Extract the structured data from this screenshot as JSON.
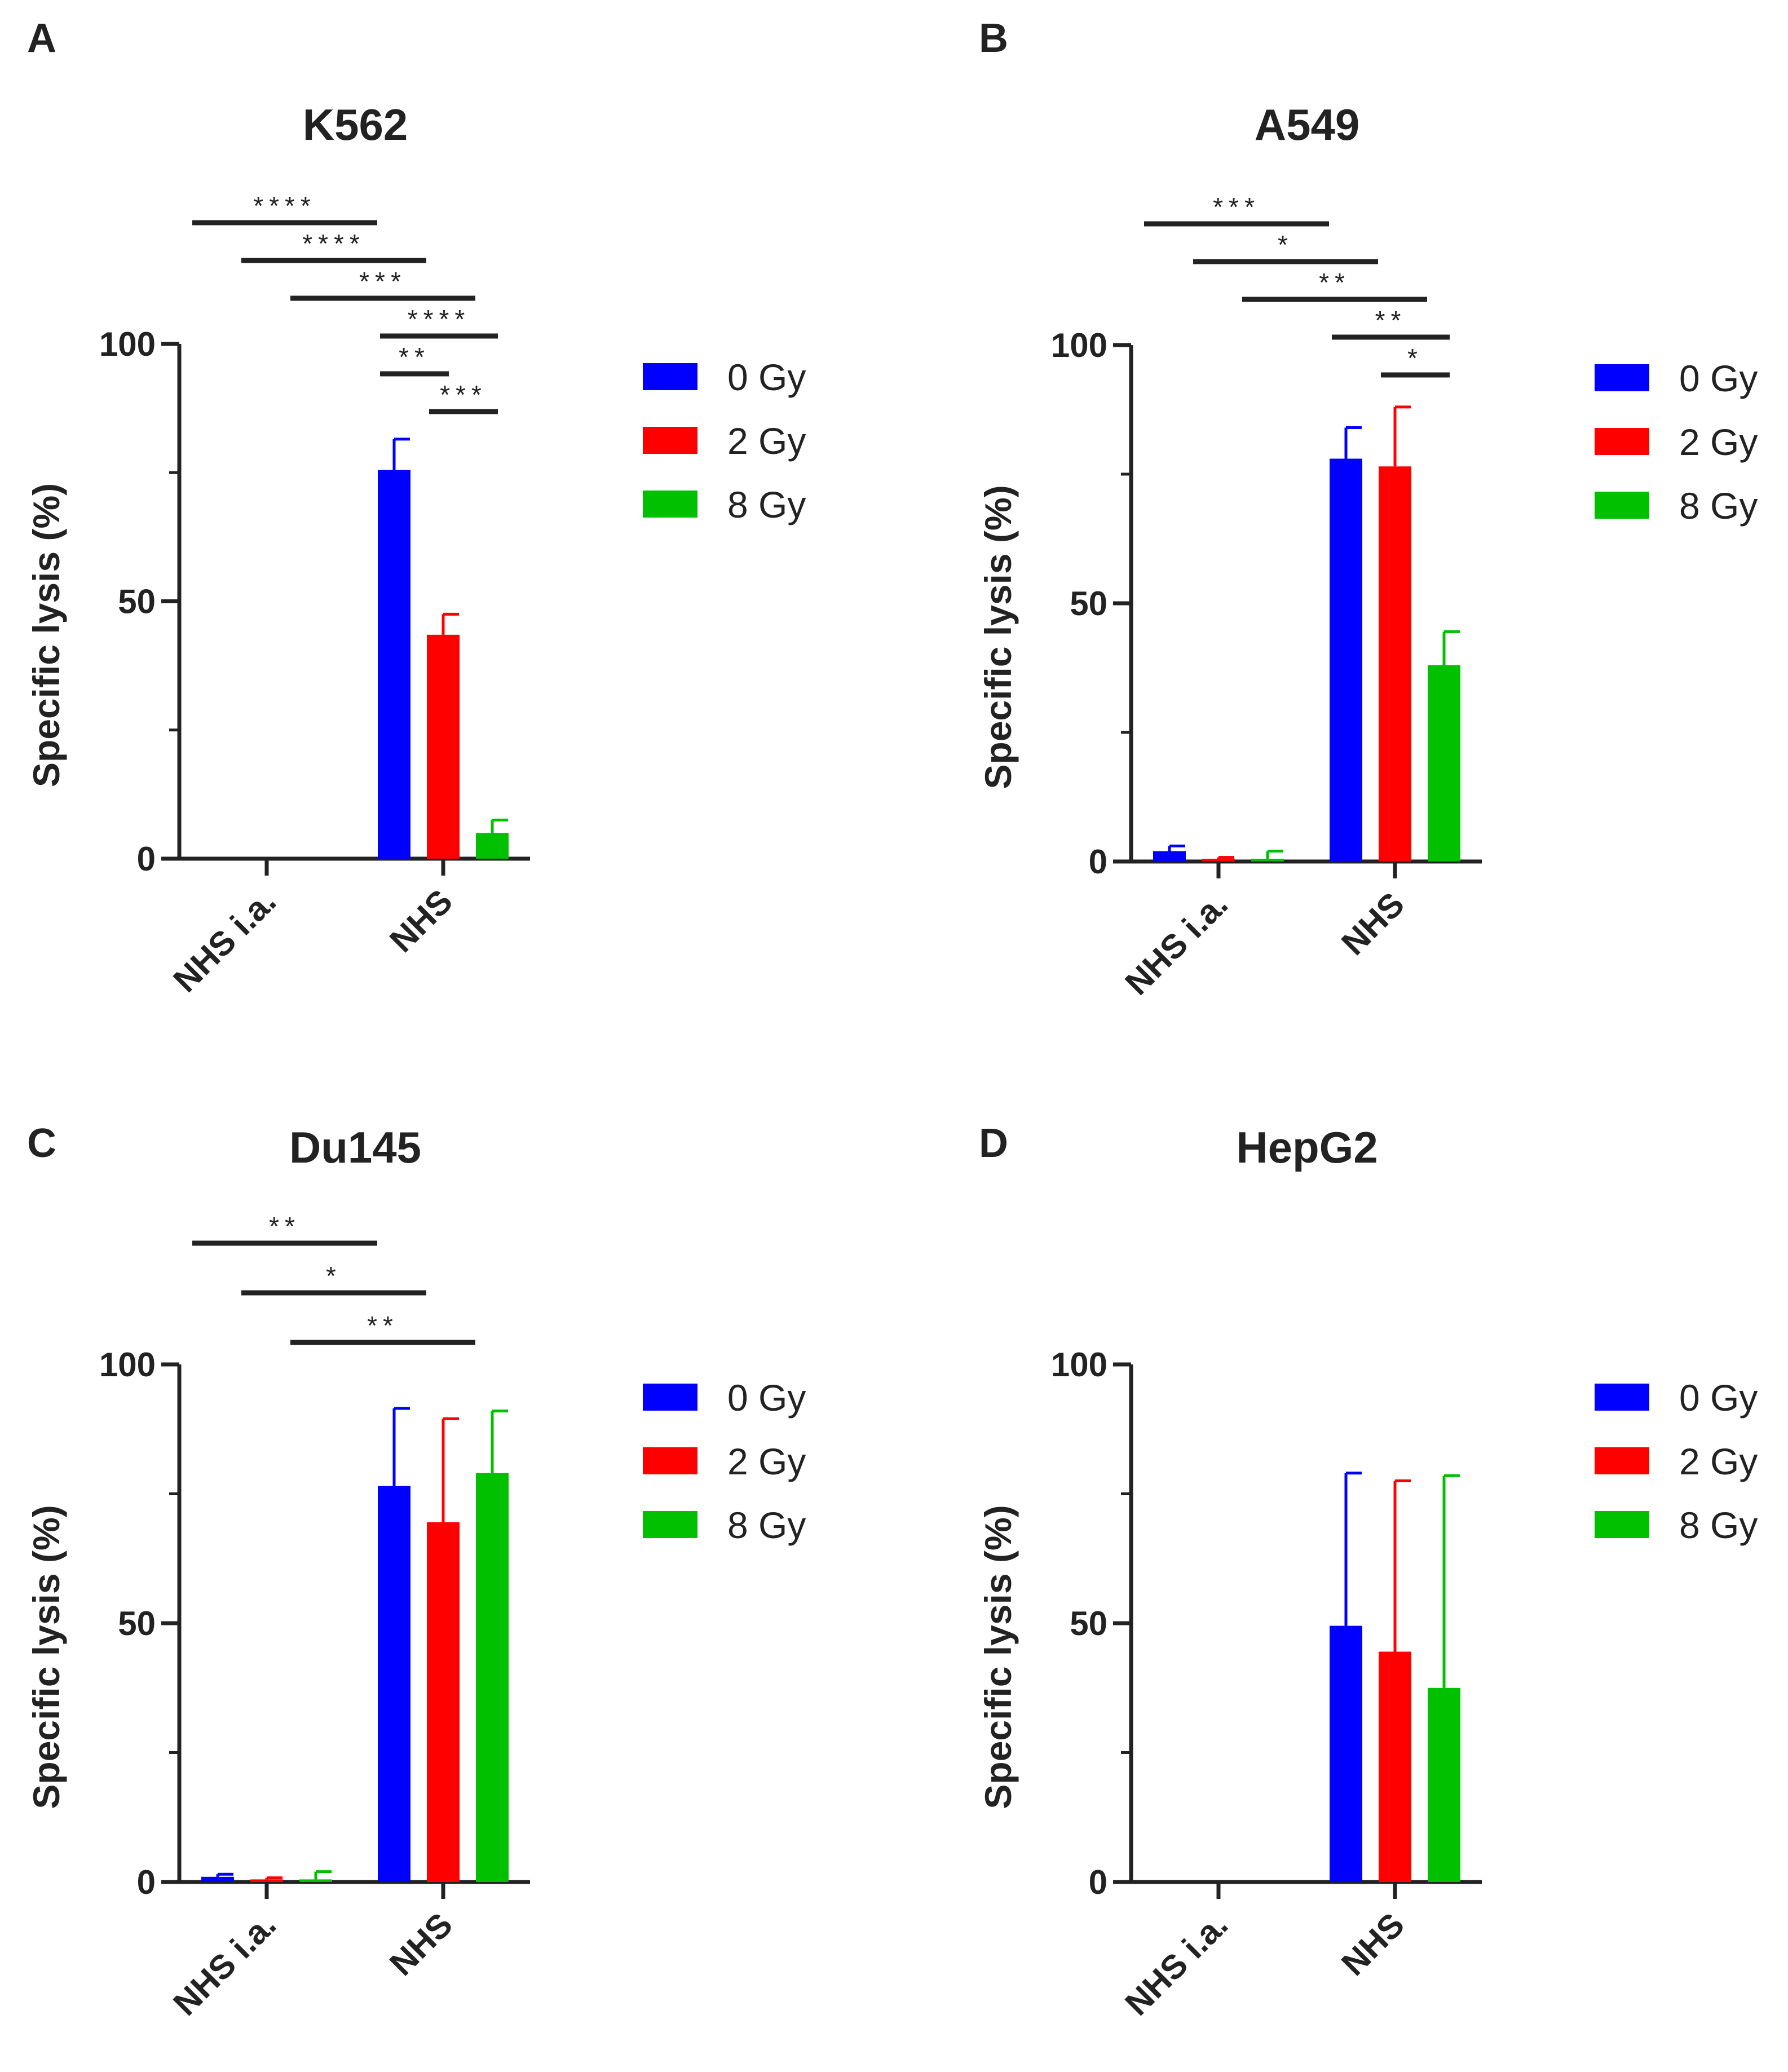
{
  "colors": {
    "0 Gy": "#0000ff",
    "2 Gy": "#ff0000",
    "8 Gy": "#00c000",
    "axis": "#222222"
  },
  "chart_data": [
    {
      "panel": "A",
      "type": "bar",
      "title": "K562",
      "ylabel": "Specific lysis (%)",
      "xlabel": "",
      "ylim": [
        0,
        100
      ],
      "yticks": [
        0,
        50,
        100
      ],
      "categories": [
        "NHS i.a.",
        "NHS"
      ],
      "legend": [
        "0 Gy",
        "2 Gy",
        "8 Gy"
      ],
      "series": [
        {
          "name": "0 Gy",
          "values": [
            0,
            75.5
          ],
          "errors": [
            0,
            6
          ]
        },
        {
          "name": "2 Gy",
          "values": [
            0,
            43.5
          ],
          "errors": [
            0,
            4
          ]
        },
        {
          "name": "8 Gy",
          "values": [
            0,
            5
          ],
          "errors": [
            0,
            2.5
          ]
        }
      ],
      "significance": [
        {
          "from": "NHS i.a. / 0 Gy",
          "to": "NHS / 0 Gy",
          "label": "****"
        },
        {
          "from": "NHS i.a. / 2 Gy",
          "to": "NHS / 2 Gy",
          "label": "****"
        },
        {
          "from": "NHS i.a. / 8 Gy",
          "to": "NHS / 8 Gy",
          "label": "***"
        },
        {
          "from": "NHS / 0 Gy",
          "to": "NHS / 8 Gy",
          "label": "****"
        },
        {
          "from": "NHS / 0 Gy",
          "to": "NHS / 2 Gy",
          "label": "**"
        },
        {
          "from": "NHS / 2 Gy",
          "to": "NHS / 8 Gy",
          "label": "***"
        }
      ]
    },
    {
      "panel": "B",
      "type": "bar",
      "title": "A549",
      "ylabel": "Specific lysis  (%)",
      "xlabel": "",
      "ylim": [
        0,
        100
      ],
      "yticks": [
        0,
        50,
        100
      ],
      "categories": [
        "NHS i.a.",
        "NHS"
      ],
      "legend": [
        "0 Gy",
        "2 Gy",
        "8 Gy"
      ],
      "series": [
        {
          "name": "0 Gy",
          "values": [
            2,
            78
          ],
          "errors": [
            1,
            6
          ]
        },
        {
          "name": "2 Gy",
          "values": [
            0.5,
            76.5
          ],
          "errors": [
            0.3,
            11.5
          ]
        },
        {
          "name": "8 Gy",
          "values": [
            0.5,
            38
          ],
          "errors": [
            1.5,
            6.5
          ]
        }
      ],
      "significance": [
        {
          "from": "NHS i.a. / 0 Gy",
          "to": "NHS / 0 Gy",
          "label": "***"
        },
        {
          "from": "NHS i.a. / 2 Gy",
          "to": "NHS / 2 Gy",
          "label": "*"
        },
        {
          "from": "NHS i.a. / 8 Gy",
          "to": "NHS / 8 Gy",
          "label": "**"
        },
        {
          "from": "NHS / 0 Gy",
          "to": "NHS / 8 Gy",
          "label": "**"
        },
        {
          "from": "NHS / 2 Gy",
          "to": "NHS / 8 Gy",
          "label": "*"
        }
      ]
    },
    {
      "panel": "C",
      "type": "bar",
      "title": "Du145",
      "ylabel": "Specific lysis (%)",
      "xlabel": "",
      "ylim": [
        0,
        100
      ],
      "yticks": [
        0,
        50,
        100
      ],
      "categories": [
        "NHS i.a.",
        "NHS"
      ],
      "legend": [
        "0 Gy",
        "2 Gy",
        "8 Gy"
      ],
      "series": [
        {
          "name": "0 Gy",
          "values": [
            1,
            76.5
          ],
          "errors": [
            0.5,
            15
          ]
        },
        {
          "name": "2 Gy",
          "values": [
            0.5,
            69.5
          ],
          "errors": [
            0.3,
            20
          ]
        },
        {
          "name": "8 Gy",
          "values": [
            0.5,
            79
          ],
          "errors": [
            1.5,
            12
          ]
        }
      ],
      "significance": [
        {
          "from": "NHS i.a. / 0 Gy",
          "to": "NHS / 0 Gy",
          "label": "**"
        },
        {
          "from": "NHS i.a. / 2 Gy",
          "to": "NHS / 2 Gy",
          "label": "*"
        },
        {
          "from": "NHS i.a. / 8 Gy",
          "to": "NHS / 8 Gy",
          "label": "**"
        }
      ]
    },
    {
      "panel": "D",
      "type": "bar",
      "title": "HepG2",
      "ylabel": "Specific lysis (%)",
      "xlabel": "",
      "ylim": [
        0,
        100
      ],
      "yticks": [
        0,
        50,
        100
      ],
      "categories": [
        "NHS i.a.",
        "NHS"
      ],
      "legend": [
        "0 Gy",
        "2 Gy",
        "8 Gy"
      ],
      "series": [
        {
          "name": "0 Gy",
          "values": [
            0,
            49.5
          ],
          "errors": [
            0,
            29.5
          ]
        },
        {
          "name": "2 Gy",
          "values": [
            0,
            44.5
          ],
          "errors": [
            0,
            33
          ]
        },
        {
          "name": "8 Gy",
          "values": [
            0,
            37.5
          ],
          "errors": [
            0,
            41
          ]
        }
      ],
      "significance": []
    }
  ]
}
